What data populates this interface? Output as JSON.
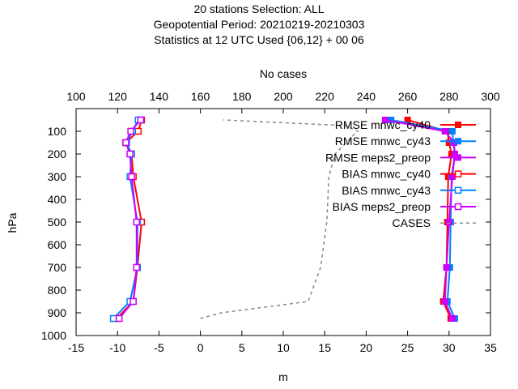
{
  "chart_data": {
    "type": "line",
    "title_lines": [
      "20 stations Selection: ALL",
      "Geopotential  Period: 20210219-20210303",
      "Statistics at 12 UTC  Used {06,12} + 00 06"
    ],
    "xlabel": "m",
    "ylabel": "hPa",
    "x2label": "No cases",
    "xlim": [
      -15,
      35
    ],
    "ylim": [
      1000,
      0
    ],
    "x2lim": [
      100,
      300
    ],
    "xticks": [
      "-15",
      "-10",
      "-5",
      "0",
      "5",
      "10",
      "15",
      "20",
      "25",
      "30",
      "35"
    ],
    "x2ticks": [
      "100",
      "120",
      "140",
      "160",
      "180",
      "200",
      "220",
      "240",
      "260",
      "280",
      "300"
    ],
    "yticks": [
      "100",
      "200",
      "300",
      "400",
      "500",
      "600",
      "700",
      "800",
      "900",
      "1000"
    ],
    "legend_position": "top-right",
    "grid": false,
    "series": [
      {
        "name": "RMSE mnwc_cy40",
        "color": "#ff0000",
        "marker": "filled-square",
        "axis": "x",
        "points": [
          [
            30.2,
            925
          ],
          [
            29.3,
            850
          ],
          [
            29.7,
            700
          ],
          [
            29.8,
            500
          ],
          [
            29.9,
            300
          ],
          [
            30.3,
            200
          ],
          [
            30.0,
            150
          ],
          [
            29.8,
            100
          ],
          [
            25.0,
            50
          ]
        ]
      },
      {
        "name": "RMSE mnwc_cy43",
        "color": "#0080ff",
        "marker": "filled-square",
        "axis": "x",
        "points": [
          [
            30.7,
            925
          ],
          [
            29.8,
            850
          ],
          [
            30.1,
            700
          ],
          [
            30.2,
            500
          ],
          [
            30.3,
            300
          ],
          [
            30.7,
            200
          ],
          [
            30.5,
            150
          ],
          [
            30.4,
            100
          ],
          [
            23.0,
            50
          ]
        ]
      },
      {
        "name": "RMSE meps2_preop",
        "color": "#cc00ff",
        "marker": "filled-square",
        "axis": "x",
        "points": [
          [
            30.4,
            925
          ],
          [
            29.5,
            850
          ],
          [
            29.7,
            700
          ],
          [
            30.0,
            500
          ],
          [
            30.4,
            300
          ],
          [
            30.7,
            200
          ],
          [
            30.6,
            150
          ],
          [
            29.5,
            100
          ],
          [
            22.3,
            50
          ]
        ]
      },
      {
        "name": "BIAS mnwc_cy40",
        "color": "#ff0000",
        "marker": "open-square",
        "axis": "x",
        "points": [
          [
            -10.1,
            925
          ],
          [
            -8.1,
            850
          ],
          [
            -7.6,
            700
          ],
          [
            -7.1,
            500
          ],
          [
            -8.1,
            300
          ],
          [
            -8.3,
            200
          ],
          [
            -9.0,
            150
          ],
          [
            -7.5,
            100
          ],
          [
            -7.1,
            50
          ]
        ]
      },
      {
        "name": "BIAS mnwc_cy43",
        "color": "#0080ff",
        "marker": "open-square",
        "axis": "x",
        "points": [
          [
            -10.5,
            925
          ],
          [
            -8.5,
            850
          ],
          [
            -7.6,
            700
          ],
          [
            -7.6,
            500
          ],
          [
            -8.5,
            300
          ],
          [
            -8.3,
            200
          ],
          [
            -8.9,
            150
          ],
          [
            -8.2,
            100
          ],
          [
            -7.5,
            50
          ]
        ]
      },
      {
        "name": "BIAS meps2_preop",
        "color": "#cc00ff",
        "marker": "open-square",
        "axis": "x",
        "points": [
          [
            -9.8,
            925
          ],
          [
            -8.1,
            850
          ],
          [
            -7.7,
            700
          ],
          [
            -7.7,
            500
          ],
          [
            -8.3,
            300
          ],
          [
            -8.5,
            200
          ],
          [
            -9.0,
            150
          ],
          [
            -8.4,
            100
          ],
          [
            -7.2,
            50
          ]
        ]
      },
      {
        "name": "CASES",
        "color": "#888888",
        "marker": "none",
        "dash": true,
        "axis": "x2",
        "points": [
          [
            160,
            925
          ],
          [
            170,
            900
          ],
          [
            212,
            850
          ],
          [
            214,
            800
          ],
          [
            218,
            700
          ],
          [
            221,
            500
          ],
          [
            222,
            300
          ],
          [
            225,
            200
          ],
          [
            233,
            125
          ],
          [
            236,
            100
          ],
          [
            230,
            75
          ],
          [
            171,
            50
          ]
        ]
      }
    ]
  }
}
